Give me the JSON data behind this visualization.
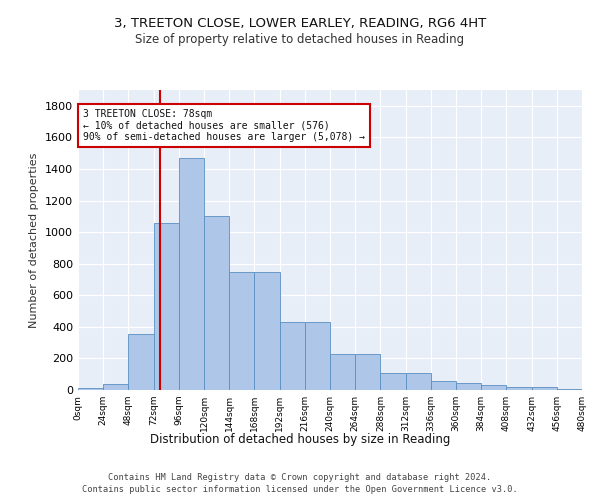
{
  "title_line1": "3, TREETON CLOSE, LOWER EARLEY, READING, RG6 4HT",
  "title_line2": "Size of property relative to detached houses in Reading",
  "xlabel": "Distribution of detached houses by size in Reading",
  "ylabel": "Number of detached properties",
  "bin_edges": [
    0,
    24,
    48,
    72,
    96,
    120,
    144,
    168,
    192,
    216,
    240,
    264,
    288,
    312,
    336,
    360,
    384,
    408,
    432,
    456,
    480
  ],
  "bar_heights": [
    10,
    35,
    355,
    1060,
    1470,
    1100,
    745,
    745,
    430,
    430,
    225,
    225,
    110,
    110,
    55,
    45,
    30,
    20,
    18,
    8
  ],
  "bar_color": "#aec6e8",
  "bar_edge_color": "#5a8fc2",
  "property_size": 78,
  "annotation_text": "3 TREETON CLOSE: 78sqm\n← 10% of detached houses are smaller (576)\n90% of semi-detached houses are larger (5,078) →",
  "annotation_box_color": "#ffffff",
  "annotation_box_edge_color": "#cc0000",
  "vline_x": 78,
  "vline_color": "#cc0000",
  "ylim": [
    0,
    1900
  ],
  "xlim": [
    0,
    480
  ],
  "yticks": [
    0,
    200,
    400,
    600,
    800,
    1000,
    1200,
    1400,
    1600,
    1800
  ],
  "xtick_labels": [
    "0sqm",
    "24sqm",
    "48sqm",
    "72sqm",
    "96sqm",
    "120sqm",
    "144sqm",
    "168sqm",
    "192sqm",
    "216sqm",
    "240sqm",
    "264sqm",
    "288sqm",
    "312sqm",
    "336sqm",
    "360sqm",
    "384sqm",
    "408sqm",
    "432sqm",
    "456sqm",
    "480sqm"
  ],
  "footer_line1": "Contains HM Land Registry data © Crown copyright and database right 2024.",
  "footer_line2": "Contains public sector information licensed under the Open Government Licence v3.0.",
  "background_color": "#e8eef8",
  "grid_color": "#ffffff"
}
